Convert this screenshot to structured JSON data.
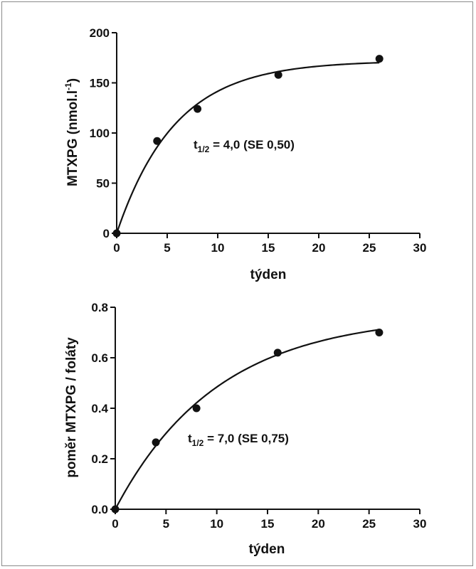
{
  "chart_data": [
    {
      "type": "scatter",
      "xlabel": "týden",
      "ylabel": "MTXPG (nmol.l",
      "ylabel_sup": "-1",
      "ylabel_close": ")",
      "xlim": [
        0,
        30
      ],
      "ylim": [
        0,
        200
      ],
      "xticks": [
        "0",
        "5",
        "10",
        "15",
        "20",
        "25",
        "30"
      ],
      "yticks": [
        "0",
        "50",
        "100",
        "150",
        "200"
      ],
      "series": [
        {
          "x": [
            0,
            4,
            8,
            16,
            26
          ],
          "y": [
            0,
            92,
            124,
            158,
            174
          ]
        }
      ],
      "fit_curve": {
        "plateau": 172,
        "half_life": 4.0
      },
      "annotation": {
        "prefix": "t",
        "subscript": "1/2",
        "text": " = 4,0 (SE 0,50)"
      },
      "grid": false
    },
    {
      "type": "scatter",
      "xlabel": "týden",
      "ylabel": "poměr MTXPG / foláty",
      "xlim": [
        0,
        30
      ],
      "ylim": [
        0,
        0.8
      ],
      "xticks": [
        "0",
        "5",
        "10",
        "15",
        "20",
        "25",
        "30"
      ],
      "yticks": [
        "0.0",
        "0.2",
        "0.4",
        "0.6",
        "0.8"
      ],
      "series": [
        {
          "x": [
            0,
            4,
            8,
            16,
            26
          ],
          "y": [
            0,
            0.265,
            0.4,
            0.62,
            0.7
          ]
        }
      ],
      "fit_curve": {
        "plateau": 0.77,
        "half_life": 7.0
      },
      "annotation": {
        "prefix": "t",
        "subscript": "1/2",
        "text": " = 7,0 (SE 0,75)"
      },
      "grid": false
    }
  ]
}
